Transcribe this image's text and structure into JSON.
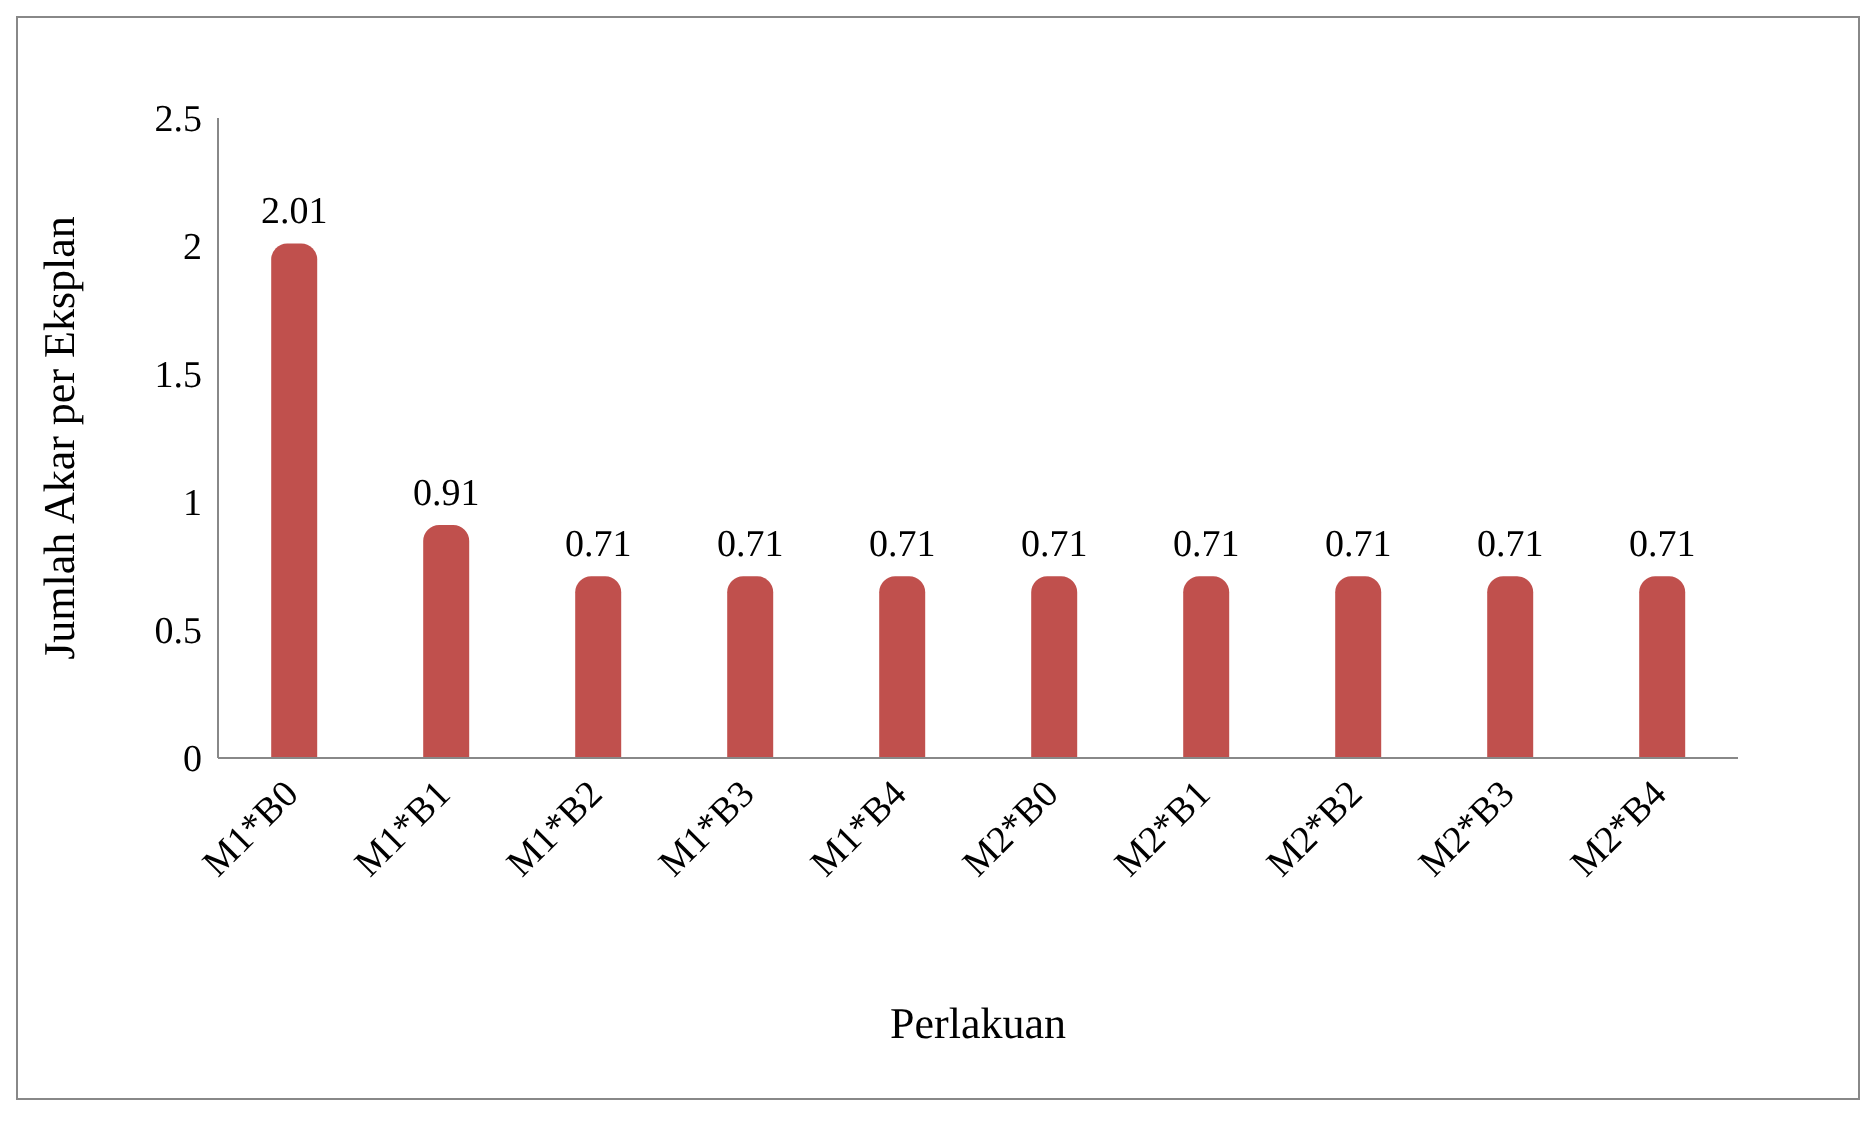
{
  "chart_data": {
    "type": "bar",
    "xlabel": "Perlakuan",
    "ylabel": "Jumlah Akar per Eksplan",
    "categories": [
      "M1*B0",
      "M1*B1",
      "M1*B2",
      "M1*B3",
      "M1*B4",
      "M2*B0",
      "M2*B1",
      "M2*B2",
      "M2*B3",
      "M2*B4"
    ],
    "values": [
      2.01,
      0.91,
      0.71,
      0.71,
      0.71,
      0.71,
      0.71,
      0.71,
      0.71,
      0.71
    ],
    "color": "#c0504d",
    "ylim": [
      0,
      2.5
    ],
    "yticks": [
      0,
      0.5,
      1,
      1.5,
      2,
      2.5
    ],
    "grid": false,
    "data_labels": true
  }
}
